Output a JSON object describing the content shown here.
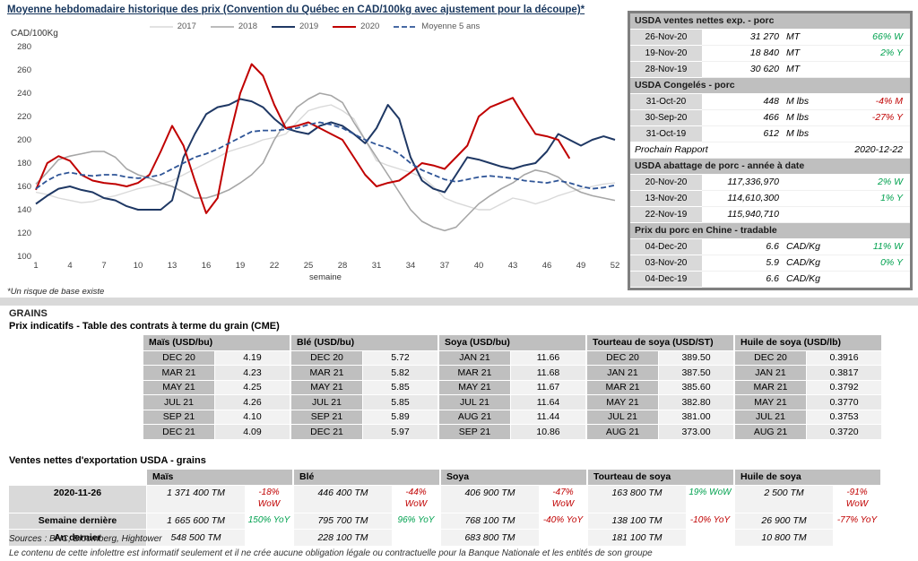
{
  "chart_data": {
    "type": "line",
    "title": "Moyenne hebdomadaire historique des prix (Convention du Québec en CAD/100kg avec ajustement pour la découpe)*",
    "ylabel": "CAD/100Kg",
    "xlabel": "semaine",
    "ylim": [
      100,
      280
    ],
    "ytick_step": 20,
    "x_ticks": [
      1,
      4,
      7,
      10,
      13,
      16,
      19,
      22,
      25,
      28,
      31,
      34,
      37,
      40,
      43,
      46,
      49,
      52
    ],
    "x_range": [
      1,
      52
    ],
    "grid": false,
    "legend_position": "top",
    "series": [
      {
        "name": "2017",
        "color": "#d9d9d9",
        "width": 1.4,
        "dash": null,
        "values": [
          155,
          153,
          150,
          148,
          146,
          147,
          150,
          152,
          155,
          158,
          160,
          162,
          165,
          170,
          175,
          180,
          185,
          190,
          193,
          196,
          200,
          202,
          205,
          215,
          225,
          228,
          230,
          225,
          218,
          200,
          182,
          178,
          175,
          172,
          168,
          160,
          150,
          146,
          143,
          140,
          140,
          145,
          150,
          148,
          145,
          148,
          152,
          155,
          158,
          160,
          162,
          163
        ]
      },
      {
        "name": "2018",
        "color": "#a6a6a6",
        "width": 1.6,
        "dash": null,
        "values": [
          162,
          172,
          183,
          186,
          188,
          190,
          190,
          185,
          175,
          170,
          167,
          163,
          160,
          155,
          150,
          150,
          153,
          157,
          163,
          170,
          180,
          200,
          215,
          228,
          235,
          240,
          238,
          232,
          215,
          200,
          185,
          170,
          155,
          140,
          130,
          125,
          122,
          125,
          135,
          145,
          152,
          158,
          163,
          170,
          174,
          172,
          168,
          160,
          155,
          152,
          150,
          148
        ]
      },
      {
        "name": "2019",
        "color": "#1f3864",
        "width": 2,
        "dash": null,
        "values": [
          145,
          152,
          158,
          160,
          157,
          155,
          150,
          148,
          143,
          140,
          140,
          140,
          148,
          185,
          205,
          222,
          228,
          230,
          235,
          233,
          228,
          218,
          210,
          207,
          205,
          212,
          215,
          212,
          205,
          197,
          210,
          230,
          218,
          185,
          165,
          158,
          155,
          170,
          185,
          183,
          180,
          177,
          175,
          178,
          180,
          190,
          205,
          200,
          195,
          200,
          203,
          200
        ]
      },
      {
        "name": "2020",
        "color": "#c00000",
        "width": 2,
        "dash": null,
        "values": [
          157,
          180,
          186,
          182,
          170,
          165,
          163,
          162,
          160,
          163,
          170,
          190,
          212,
          195,
          165,
          137,
          150,
          200,
          240,
          265,
          255,
          230,
          210,
          212,
          215,
          210,
          205,
          200,
          185,
          170,
          160,
          163,
          165,
          172,
          180,
          178,
          175,
          185,
          195,
          220,
          228,
          232,
          236,
          220,
          205,
          203,
          200,
          184,
          null,
          null,
          null,
          null
        ]
      },
      {
        "name": "Moyenne 5 ans",
        "color": "#2f5597",
        "width": 1.8,
        "dash": "6 3",
        "values": [
          158,
          165,
          170,
          172,
          170,
          169,
          170,
          170,
          168,
          167,
          168,
          170,
          175,
          180,
          185,
          188,
          192,
          197,
          202,
          207,
          208,
          208,
          209,
          210,
          213,
          215,
          213,
          210,
          205,
          200,
          196,
          193,
          188,
          180,
          174,
          170,
          166,
          164,
          166,
          168,
          169,
          168,
          167,
          165,
          164,
          163,
          165,
          163,
          160,
          158,
          159,
          161
        ]
      }
    ]
  },
  "footnotes": {
    "basis_risk": "*Un risque de base existe"
  },
  "pork_panel": {
    "rows": [
      {
        "type": "header",
        "label": "USDA ventes nettes exp. - porc"
      },
      {
        "type": "data",
        "date": "26-Nov-20",
        "value": "31 270",
        "unit": "MT",
        "change": "66% W",
        "dir": "up"
      },
      {
        "type": "data",
        "date": "19-Nov-20",
        "value": "18 840",
        "unit": "MT",
        "change": "2% Y",
        "dir": "up"
      },
      {
        "type": "data",
        "date": "28-Nov-19",
        "value": "30 620",
        "unit": "MT",
        "change": "",
        "dir": ""
      },
      {
        "type": "header",
        "label": "USDA Congelés - porc"
      },
      {
        "type": "data",
        "date": "31-Oct-20",
        "value": "448",
        "unit": "M lbs",
        "change": "-4% M",
        "dir": "down"
      },
      {
        "type": "data",
        "date": "30-Sep-20",
        "value": "466",
        "unit": "M lbs",
        "change": "-27% Y",
        "dir": "down"
      },
      {
        "type": "data",
        "date": "31-Oct-19",
        "value": "612",
        "unit": "M lbs",
        "change": "",
        "dir": ""
      },
      {
        "type": "info",
        "label": "Prochain Rapport",
        "value": "2020-12-22"
      },
      {
        "type": "header",
        "label": "USDA abattage de porc - année à date"
      },
      {
        "type": "data",
        "date": "20-Nov-20",
        "value": "117,336,970",
        "unit": "",
        "change": "2% W",
        "dir": "up"
      },
      {
        "type": "data",
        "date": "13-Nov-20",
        "value": "114,610,300",
        "unit": "",
        "change": "1% Y",
        "dir": "up"
      },
      {
        "type": "data",
        "date": "22-Nov-19",
        "value": "115,940,710",
        "unit": "",
        "change": "",
        "dir": ""
      },
      {
        "type": "header",
        "label": "Prix du porc en Chine - tradable"
      },
      {
        "type": "data",
        "date": "04-Dec-20",
        "value": "6.6",
        "unit": "CAD/Kg",
        "change": "11% W",
        "dir": "up"
      },
      {
        "type": "data",
        "date": "03-Nov-20",
        "value": "5.9",
        "unit": "CAD/Kg",
        "change": "0% Y",
        "dir": "up"
      },
      {
        "type": "data",
        "date": "04-Dec-19",
        "value": "6.6",
        "unit": "CAD/Kg",
        "change": "",
        "dir": ""
      }
    ]
  },
  "grains": {
    "section_label": "GRAINS",
    "futures": {
      "title": "Prix indicatifs - Table des contrats à terme du grain (CME)",
      "columns": [
        {
          "header": "Maïs (USD/bu)",
          "rows": [
            [
              "DEC 20",
              "4.19"
            ],
            [
              "MAR 21",
              "4.23"
            ],
            [
              "MAY 21",
              "4.25"
            ],
            [
              "JUL 21",
              "4.26"
            ],
            [
              "SEP 21",
              "4.10"
            ],
            [
              "DEC 21",
              "4.09"
            ]
          ]
        },
        {
          "header": "Blé (USD/bu)",
          "rows": [
            [
              "DEC 20",
              "5.72"
            ],
            [
              "MAR 21",
              "5.82"
            ],
            [
              "MAY 21",
              "5.85"
            ],
            [
              "JUL 21",
              "5.85"
            ],
            [
              "SEP 21",
              "5.89"
            ],
            [
              "DEC 21",
              "5.97"
            ]
          ]
        },
        {
          "header": "Soya (USD/bu)",
          "rows": [
            [
              "JAN 21",
              "11.66"
            ],
            [
              "MAR 21",
              "11.68"
            ],
            [
              "MAY 21",
              "11.67"
            ],
            [
              "JUL 21",
              "11.64"
            ],
            [
              "AUG 21",
              "11.44"
            ],
            [
              "SEP 21",
              "10.86"
            ]
          ]
        },
        {
          "header": "Tourteau de soya (USD/ST)",
          "rows": [
            [
              "DEC 20",
              "389.50"
            ],
            [
              "JAN 21",
              "387.50"
            ],
            [
              "MAR 21",
              "385.60"
            ],
            [
              "MAY 21",
              "382.80"
            ],
            [
              "JUL 21",
              "381.00"
            ],
            [
              "AUG 21",
              "373.00"
            ]
          ]
        },
        {
          "header": "Huile de soya (USD/lb)",
          "rows": [
            [
              "DEC 20",
              "0.3916"
            ],
            [
              "JAN 21",
              "0.3817"
            ],
            [
              "MAR 21",
              "0.3792"
            ],
            [
              "MAY 21",
              "0.3770"
            ],
            [
              "JUL 21",
              "0.3753"
            ],
            [
              "AUG 21",
              "0.3720"
            ]
          ]
        }
      ]
    },
    "exports": {
      "title": "Ventes nettes d'exportation USDA - grains",
      "columns": [
        "Maïs",
        "Blé",
        "Soya",
        "Tourteau de soya",
        "Huile de soya"
      ],
      "rows": [
        {
          "label": "2020-11-26",
          "cells": [
            {
              "value": "1 371 400 TM",
              "change": "-18% WoW",
              "dir": "down"
            },
            {
              "value": "446 400 TM",
              "change": "-44% WoW",
              "dir": "down"
            },
            {
              "value": "406 900 TM",
              "change": "-47% WoW",
              "dir": "down"
            },
            {
              "value": "163 800 TM",
              "change": "19% WoW",
              "dir": "up"
            },
            {
              "value": "2 500 TM",
              "change": "-91% WoW",
              "dir": "down"
            }
          ]
        },
        {
          "label": "Semaine dernière",
          "cells": [
            {
              "value": "1 665 600 TM",
              "change": "150% YoY",
              "dir": "up"
            },
            {
              "value": "795 700 TM",
              "change": "96% YoY",
              "dir": "up"
            },
            {
              "value": "768 100 TM",
              "change": "-40% YoY",
              "dir": "down"
            },
            {
              "value": "138 100 TM",
              "change": "-10% YoY",
              "dir": "down"
            },
            {
              "value": "26 900 TM",
              "change": "-77% YoY",
              "dir": "down"
            }
          ]
        },
        {
          "label": "An dernier",
          "cells": [
            {
              "value": "548 500 TM",
              "change": "",
              "dir": ""
            },
            {
              "value": "228 100 TM",
              "change": "",
              "dir": ""
            },
            {
              "value": "683 800 TM",
              "change": "",
              "dir": ""
            },
            {
              "value": "181 100 TM",
              "change": "",
              "dir": ""
            },
            {
              "value": "10 800 TM",
              "change": "",
              "dir": ""
            }
          ]
        }
      ]
    }
  },
  "footer": {
    "sources": "Sources : BNC, Bloomberg, Hightower",
    "disclaimer": "Le contenu de cette infolettre est informatif seulement et il ne crée aucune obligation légale ou contractuelle pour la Banque Nationale et les entités de son groupe"
  }
}
